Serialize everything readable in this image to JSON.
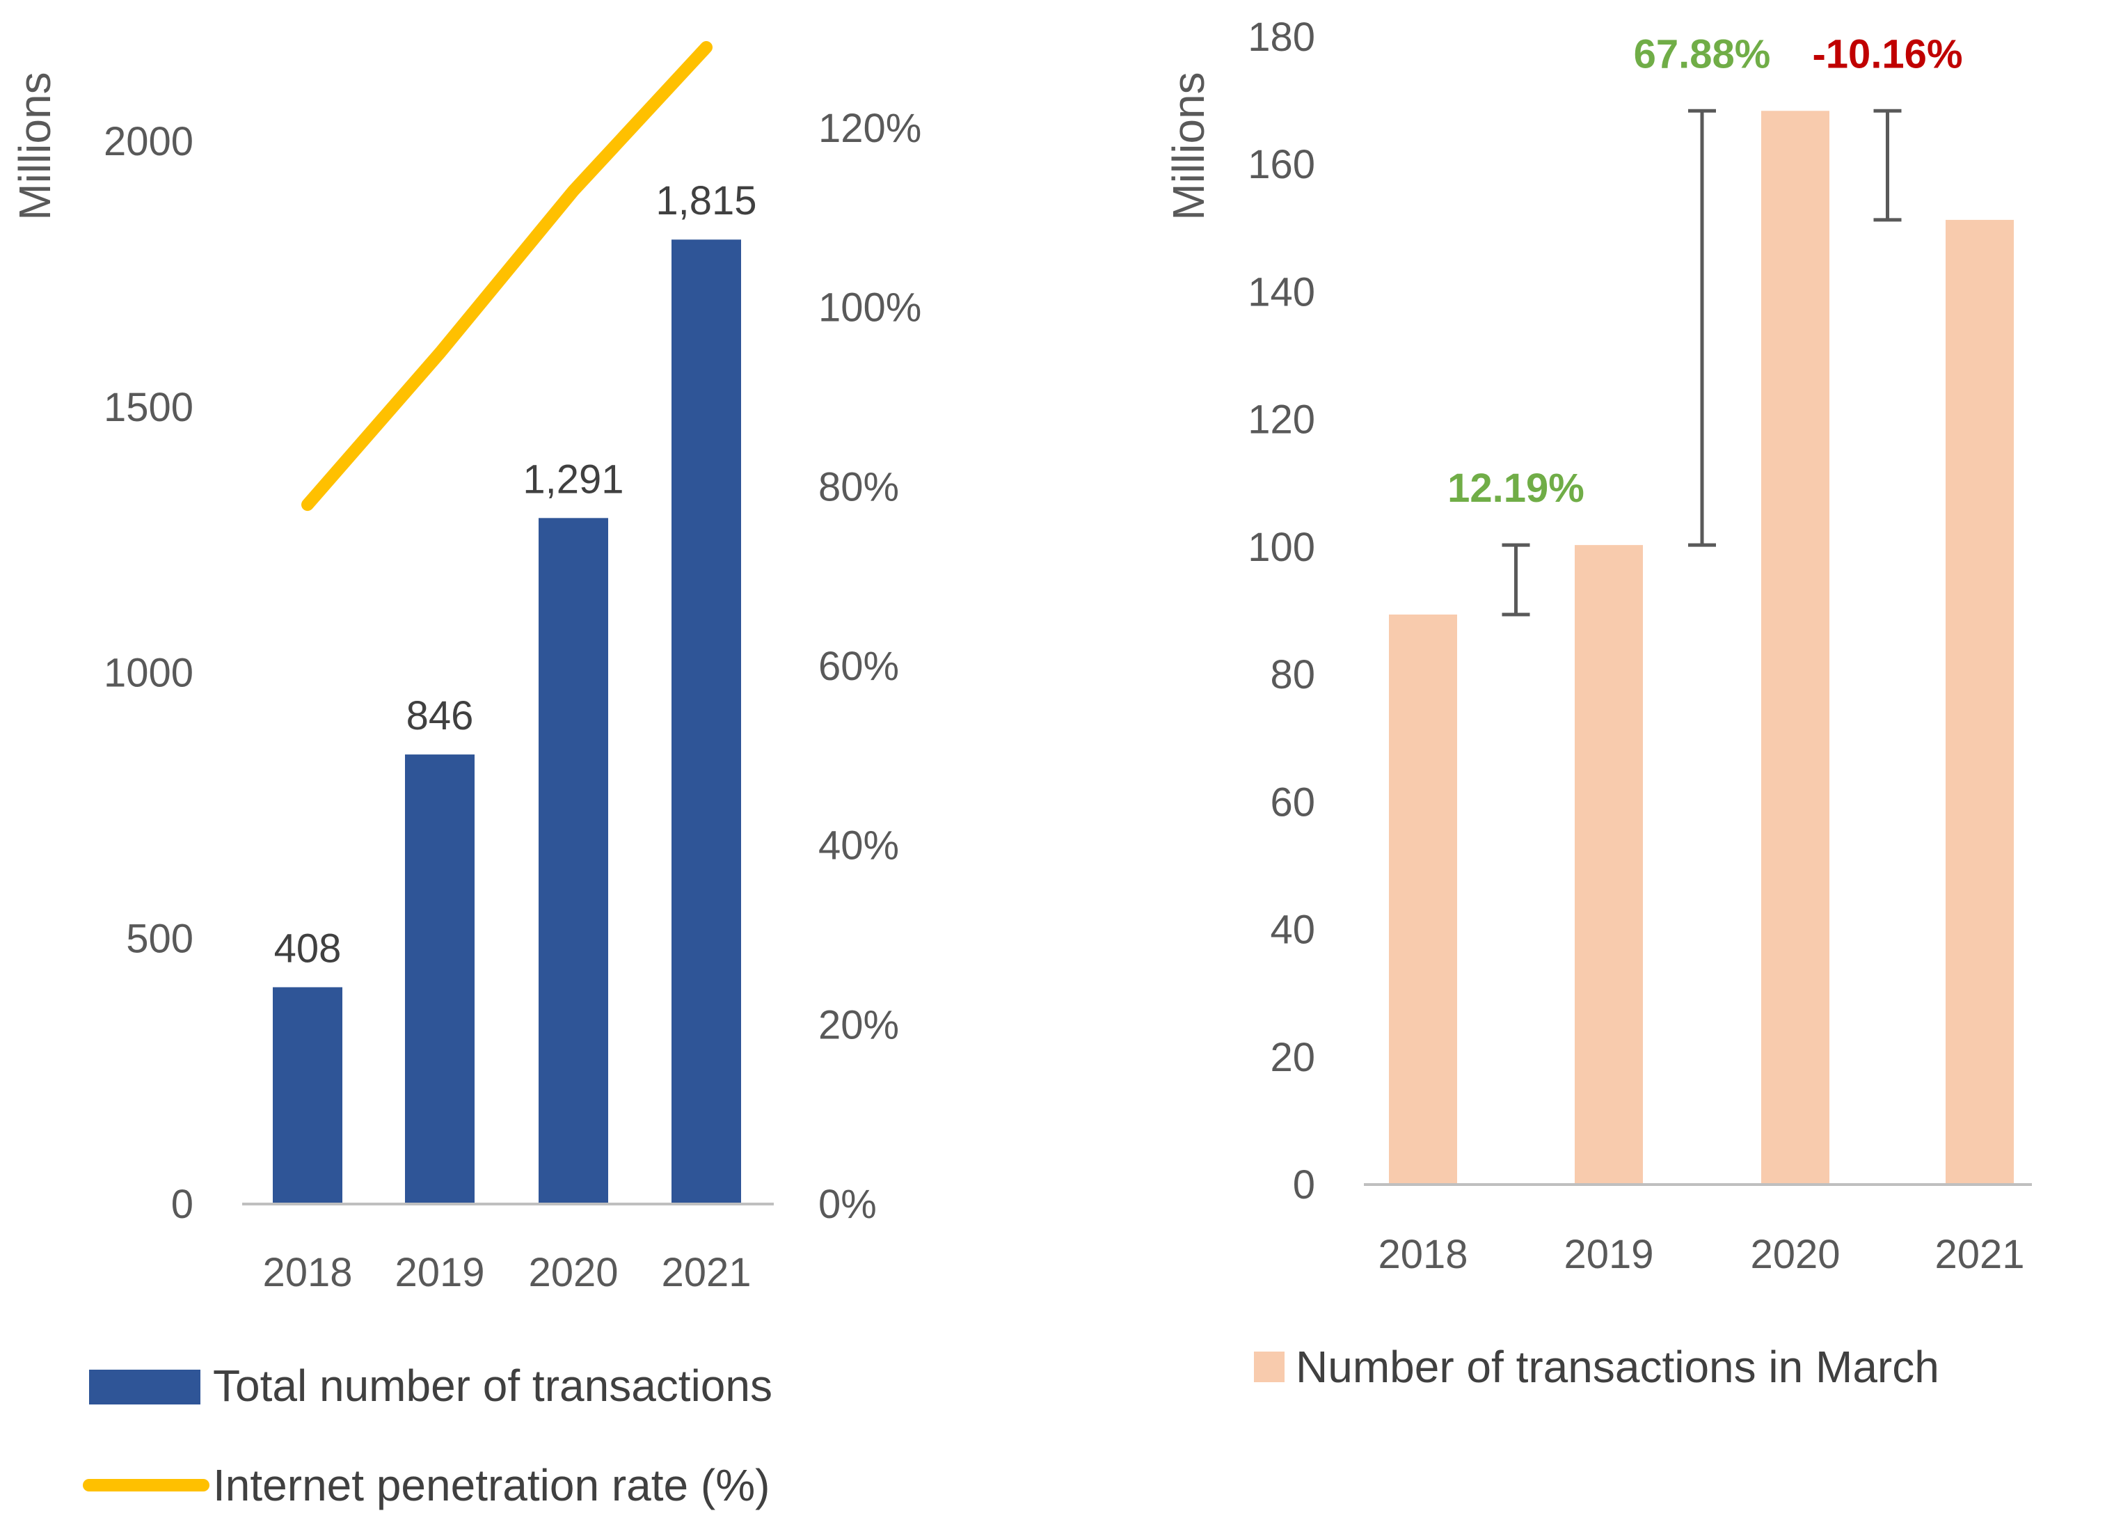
{
  "chart_data": [
    {
      "type": "bar+line",
      "title": "",
      "categories": [
        "2018",
        "2019",
        "2020",
        "2021"
      ],
      "y_axis_label": "Millions",
      "y_ticks": [
        "0",
        "500",
        "1000",
        "1500",
        "2000"
      ],
      "y2_ticks": [
        "0%",
        "20%",
        "40%",
        "60%",
        "80%",
        "100%",
        "120%"
      ],
      "ylim": [
        0,
        2000
      ],
      "y2lim": [
        0,
        1.2
      ],
      "grid": false,
      "series": [
        {
          "name": "Total number of transactions",
          "kind": "bar",
          "axis": "left",
          "color": "#2F5597",
          "values": [
            408,
            846,
            1291,
            1815
          ],
          "data_labels": [
            "408",
            "846",
            "1,291",
            "1,815"
          ]
        },
        {
          "name": "Internet penetration rate (%)",
          "kind": "line",
          "axis": "right",
          "color": "#FFC000",
          "values": [
            0.78,
            0.95,
            1.13,
            1.29
          ]
        }
      ],
      "legend": [
        {
          "label": "Total number of transactions",
          "symbol": "bar",
          "color": "#2F5597"
        },
        {
          "label": "Internet penetration rate (%)",
          "symbol": "line",
          "color": "#FFC000"
        }
      ],
      "legend_position": "bottom"
    },
    {
      "type": "bar",
      "title": "",
      "categories": [
        "2018",
        "2019",
        "2020",
        "2021"
      ],
      "y_axis_label": "Millions",
      "y_ticks": [
        "0",
        "20",
        "40",
        "60",
        "80",
        "100",
        "120",
        "140",
        "160",
        "180"
      ],
      "ylim": [
        0,
        180
      ],
      "grid": false,
      "series": [
        {
          "name": "Number of transactions in March",
          "color": "#F8CBAD",
          "values": [
            89.4,
            100.3,
            168.4,
            151.3
          ]
        }
      ],
      "annotations": [
        {
          "text": "12.19%",
          "between": [
            0,
            1
          ],
          "color": "#70AD47"
        },
        {
          "text": "67.88%",
          "between": [
            1,
            2
          ],
          "color": "#70AD47"
        },
        {
          "text": "-10.16%",
          "between": [
            2,
            3
          ],
          "color": "#C00000"
        }
      ],
      "legend": [
        {
          "label": "Number of transactions in March",
          "symbol": "bar",
          "color": "#F8CBAD"
        }
      ],
      "legend_position": "bottom"
    }
  ]
}
